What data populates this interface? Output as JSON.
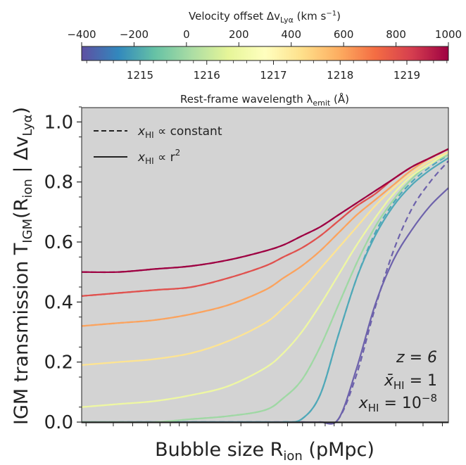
{
  "colorbar": {
    "top_label": "Velocity offset Δv",
    "top_label_sub": "Lyα",
    "top_label_unit_pre": " (km s",
    "top_label_unit_sup": "−1",
    "top_label_unit_post": ")",
    "top_ticks": [
      "−400",
      "−200",
      "0",
      "200",
      "400",
      "600",
      "800",
      "1000"
    ],
    "top_range": [
      -400,
      1000
    ],
    "bottom_label": "Rest-frame wavelength λ",
    "bottom_label_sub": "emit",
    "bottom_label_unit": " (Å)",
    "bottom_ticks": [
      "1215",
      "1216",
      "1217",
      "1218",
      "1219"
    ],
    "bottom_tick_values": [
      1215,
      1216,
      1217,
      1218,
      1219
    ],
    "colormap": "Spectral_r",
    "colors": [
      "#5e4fa2",
      "#3288bd",
      "#66c2a5",
      "#abdda4",
      "#e6f598",
      "#ffffbf",
      "#fee08b",
      "#fdae61",
      "#f46d43",
      "#d53e4f",
      "#9e0142"
    ]
  },
  "legend": {
    "items": [
      {
        "style": "dashed",
        "x_label": "x",
        "sub": "HI",
        "rel": " ∝ constant",
        "sup": ""
      },
      {
        "style": "solid",
        "x_label": "x",
        "sub": "HI",
        "rel": " ∝ r",
        "sup": "2"
      }
    ]
  },
  "annotations": {
    "z_text": "z = 6",
    "xbar_main": "x̄",
    "xbar_sub": "HI",
    "xbar_rest": " = 1",
    "x_main": "x",
    "x_sub": "HI",
    "x_rest": " = 10",
    "x_sup": "−8"
  },
  "chart_data": {
    "type": "line",
    "title": "",
    "xlabel": "Bubble size R",
    "xlabel_sub": "ion",
    "xlabel_unit": " (pMpc)",
    "ylabel": "IGM transmission T",
    "ylabel_sub1": "IGM",
    "ylabel_mid": "(R",
    "ylabel_sub2": "ion",
    "ylabel_end": " | Δv",
    "ylabel_sub3": "Lyα",
    "ylabel_close": ")",
    "ylim": [
      0,
      1.05
    ],
    "xlim": [
      0,
      1
    ],
    "x_scale": "log",
    "ytick_values": [
      0.0,
      0.2,
      0.4,
      0.6,
      0.8,
      1.0
    ],
    "ytick_labels": [
      "0.0",
      "0.2",
      "0.4",
      "0.6",
      "0.8",
      "1.0"
    ],
    "background": "#d3d3d3",
    "grid": false,
    "legend_position": "top-left",
    "x": [
      0.0,
      0.1,
      0.2,
      0.3,
      0.4,
      0.5,
      0.55,
      0.6,
      0.65,
      0.7,
      0.75,
      0.8,
      0.85,
      0.9,
      0.95,
      1.0
    ],
    "series": [
      {
        "velocity": 1000,
        "color": "#9e0142",
        "solid": [
          0.5,
          0.5,
          0.51,
          0.52,
          0.54,
          0.57,
          0.59,
          0.62,
          0.65,
          0.69,
          0.73,
          0.77,
          0.81,
          0.85,
          0.88,
          0.91
        ],
        "dashed": [
          0.5,
          0.5,
          0.51,
          0.52,
          0.54,
          0.57,
          0.59,
          0.62,
          0.65,
          0.69,
          0.73,
          0.77,
          0.81,
          0.85,
          0.88,
          0.91
        ]
      },
      {
        "velocity": 800,
        "color": "#e0514e",
        "solid": [
          0.42,
          0.43,
          0.44,
          0.45,
          0.48,
          0.52,
          0.55,
          0.58,
          0.62,
          0.67,
          0.72,
          0.76,
          0.81,
          0.85,
          0.88,
          0.91
        ],
        "dashed": [
          0.42,
          0.43,
          0.44,
          0.45,
          0.48,
          0.52,
          0.55,
          0.58,
          0.62,
          0.67,
          0.72,
          0.76,
          0.81,
          0.85,
          0.88,
          0.91
        ]
      },
      {
        "velocity": 600,
        "color": "#fba35e",
        "solid": [
          0.32,
          0.33,
          0.34,
          0.36,
          0.39,
          0.44,
          0.48,
          0.52,
          0.57,
          0.63,
          0.69,
          0.74,
          0.79,
          0.84,
          0.88,
          0.91
        ],
        "dashed": [
          0.32,
          0.33,
          0.34,
          0.36,
          0.39,
          0.44,
          0.48,
          0.52,
          0.57,
          0.63,
          0.69,
          0.74,
          0.79,
          0.84,
          0.88,
          0.91
        ]
      },
      {
        "velocity": 400,
        "color": "#fde493",
        "solid": [
          0.19,
          0.2,
          0.21,
          0.23,
          0.27,
          0.33,
          0.38,
          0.44,
          0.51,
          0.58,
          0.65,
          0.72,
          0.78,
          0.83,
          0.87,
          0.9
        ],
        "dashed": [
          0.19,
          0.2,
          0.21,
          0.23,
          0.27,
          0.33,
          0.38,
          0.44,
          0.51,
          0.58,
          0.65,
          0.72,
          0.78,
          0.83,
          0.87,
          0.9
        ]
      },
      {
        "velocity": 200,
        "color": "#eef7a3",
        "solid": [
          0.05,
          0.06,
          0.07,
          0.09,
          0.12,
          0.18,
          0.23,
          0.3,
          0.39,
          0.49,
          0.59,
          0.68,
          0.76,
          0.82,
          0.86,
          0.9
        ],
        "dashed": [
          0.05,
          0.06,
          0.07,
          0.09,
          0.12,
          0.18,
          0.23,
          0.3,
          0.39,
          0.49,
          0.59,
          0.68,
          0.76,
          0.82,
          0.86,
          0.9
        ]
      },
      {
        "velocity": 0,
        "color": "#9fd8a4",
        "solid": [
          0.0,
          0.0,
          0.0,
          0.01,
          0.02,
          0.04,
          0.08,
          0.14,
          0.25,
          0.39,
          0.53,
          0.65,
          0.74,
          0.81,
          0.86,
          0.89
        ],
        "dashed": [
          0.0,
          0.0,
          0.0,
          0.01,
          0.02,
          0.04,
          0.08,
          0.14,
          0.25,
          0.39,
          0.53,
          0.65,
          0.74,
          0.81,
          0.86,
          0.89
        ]
      },
      {
        "velocity": -200,
        "color": "#4fa8b8",
        "solid": [
          0.0,
          0.0,
          0.0,
          0.0,
          0.0,
          0.0,
          0.0,
          0.01,
          0.09,
          0.29,
          0.48,
          0.62,
          0.72,
          0.79,
          0.84,
          0.88
        ],
        "dashed": [
          0.0,
          0.0,
          0.0,
          0.0,
          0.0,
          0.0,
          0.0,
          0.01,
          0.09,
          0.29,
          0.48,
          0.63,
          0.73,
          0.8,
          0.85,
          0.89
        ]
      },
      {
        "velocity": -400,
        "color": "#6d62ab",
        "solid": [
          0.0,
          0.0,
          0.0,
          0.0,
          0.0,
          0.0,
          0.0,
          0.0,
          0.0,
          0.01,
          0.18,
          0.39,
          0.54,
          0.64,
          0.72,
          0.78
        ],
        "dashed": [
          0.0,
          0.0,
          0.0,
          0.0,
          0.0,
          0.0,
          0.0,
          0.0,
          0.0,
          0.01,
          0.16,
          0.38,
          0.57,
          0.71,
          0.8,
          0.87
        ]
      }
    ]
  }
}
